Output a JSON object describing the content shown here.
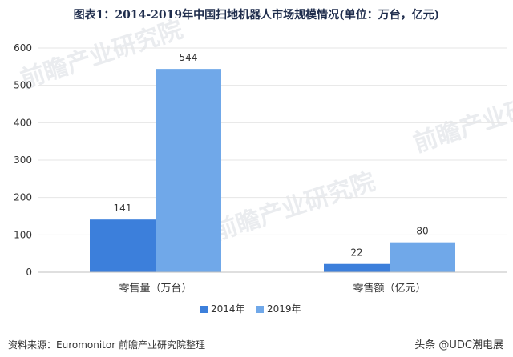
{
  "chart_data": {
    "type": "bar",
    "title": "图表1：2014-2019年中国扫地机器人市场规模情况(单位：万台，亿元)",
    "categories": [
      "零售量（万台）",
      "零售额（亿元）"
    ],
    "series": [
      {
        "name": "2014年",
        "values": [
          141,
          22
        ],
        "color": "#3c7fdb"
      },
      {
        "name": "2019年",
        "values": [
          544,
          80
        ],
        "color": "#70a8e9"
      }
    ],
    "ylim": [
      0,
      600
    ],
    "yticks": [
      0,
      100,
      200,
      300,
      400,
      500,
      600
    ],
    "grid": true,
    "legend_position": "bottom"
  },
  "source": "资料来源：Euromonitor 前瞻产业研究院整理",
  "footer_brand": "头条 @UDC潮电展",
  "watermark_text": "前瞻产业研究院",
  "colors": {
    "axis": "#bfbfbf",
    "grid": "#e6e6e6",
    "text": "#333333"
  }
}
